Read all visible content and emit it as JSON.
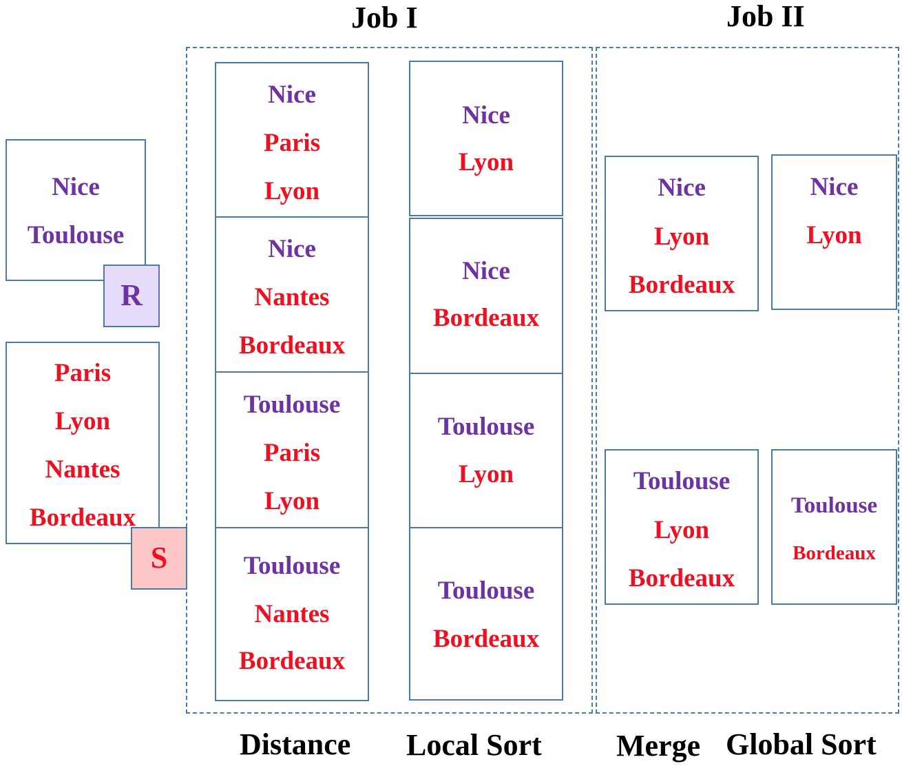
{
  "headers": {
    "job1": "Job I",
    "job2": "Job II"
  },
  "footers": {
    "distance": "Distance",
    "local_sort": "Local Sort",
    "merge": "Merge",
    "global_sort": "Global Sort"
  },
  "relations": {
    "r": {
      "tag": "R",
      "items": [
        "Nice",
        "Toulouse"
      ]
    },
    "s": {
      "tag": "S",
      "items": [
        "Paris",
        "Lyon",
        "Nantes",
        "Bordeaux"
      ]
    }
  },
  "distance": [
    [
      "Nice",
      "Paris",
      "Lyon"
    ],
    [
      "Nice",
      "Nantes",
      "Bordeaux"
    ],
    [
      "Toulouse",
      "Paris",
      "Lyon"
    ],
    [
      "Toulouse",
      "Nantes",
      "Bordeaux"
    ]
  ],
  "local_sort": [
    [
      "Nice",
      "Lyon"
    ],
    [
      "Nice",
      "Bordeaux"
    ],
    [
      "Toulouse",
      "Lyon"
    ],
    [
      "Toulouse",
      "Bordeaux"
    ]
  ],
  "merge": [
    [
      "Nice",
      "Lyon",
      "Bordeaux"
    ],
    [
      "Toulouse",
      "Lyon",
      "Bordeaux"
    ]
  ],
  "global_sort": [
    [
      "Nice",
      "Lyon"
    ],
    [
      "Toulouse",
      "Bordeaux"
    ]
  ],
  "colors": {
    "city_query": "#6d33a0",
    "city_target": "#ee1020",
    "border": "#4a7aa8",
    "r_tag_bg": "#e6dcfa",
    "s_tag_bg": "#fdc7c7"
  }
}
